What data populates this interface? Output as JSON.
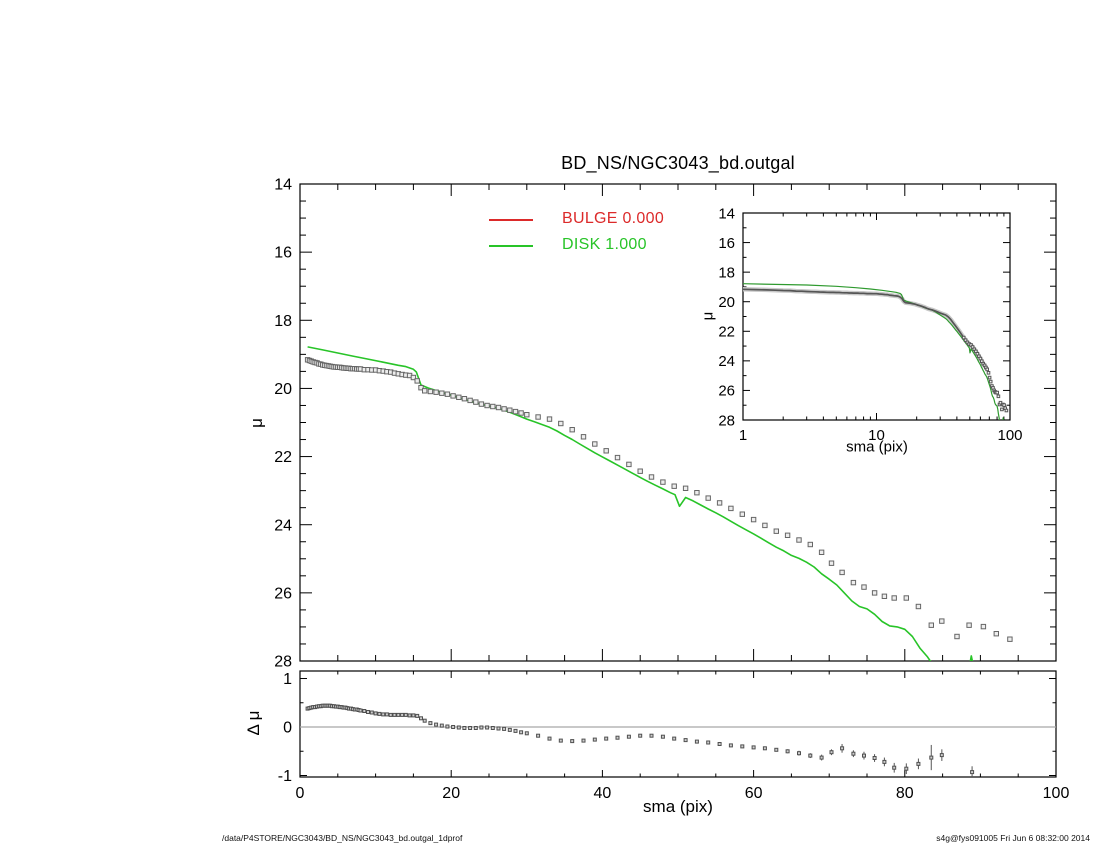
{
  "title": "BD_NS/NGC3043_bd.outgal",
  "legend": {
    "bulge_label": "BULGE  0.000",
    "disk_label": "DISK  1.000",
    "bulge_color": "#dc2a2a",
    "disk_color": "#28c428"
  },
  "footer": {
    "left": "/data/P4STORE/NGC3043/BD_NS/NGC3043_bd.outgal_1dprof",
    "right": "s4g@fys091005  Fri Jun  6 08:32:00 2014"
  },
  "colors": {
    "axis": "#000000",
    "disk": "#28c428",
    "inset_model": "#2f9a2f",
    "marker_edge": "#666666",
    "marker_fill": "#ededed",
    "inset_marker_edge": "#555555",
    "band_under": "#c9c9c9",
    "band_core": "#555555",
    "residual_marker_edge": "#4f4f4f",
    "residual_marker_fill": "#cfcfcf",
    "error_bar": "#555555",
    "zero_line": "#a8a8a8"
  },
  "chart_data": {
    "type": "line+scatter",
    "title": "BD_NS/NGC3043_bd.outgal",
    "panels": [
      {
        "id": "main",
        "ylabel": "μ",
        "xlim": [
          0,
          100
        ],
        "ylim": [
          14,
          28
        ],
        "xticks": {
          "major": [
            0,
            20,
            40,
            60,
            80,
            100
          ],
          "minor_step": 5
        },
        "yticks": {
          "major": [
            14,
            16,
            18,
            20,
            22,
            24,
            26,
            28
          ],
          "labels": [
            "14",
            "16",
            "18",
            "20",
            "22",
            "24",
            "26",
            "28"
          ],
          "minor_step": 0.5
        },
        "series": [
          {
            "name": "profile-data",
            "kind": "scatter",
            "marker": "square",
            "x": [
              1,
              1.25,
              1.5,
              1.75,
              2,
              2.25,
              2.5,
              2.75,
              3,
              3.25,
              3.5,
              3.75,
              4,
              4.25,
              4.5,
              4.75,
              5,
              5.25,
              5.5,
              5.75,
              6,
              6.25,
              6.5,
              6.75,
              7,
              7.25,
              7.5,
              7.75,
              8,
              8.5,
              9,
              9.5,
              10,
              10.5,
              11,
              11.5,
              12,
              12.5,
              13,
              13.5,
              14,
              14.5,
              15,
              15.5,
              16,
              16.5,
              17.25,
              18,
              18.75,
              19.5,
              20.25,
              21,
              21.75,
              22.5,
              23.25,
              24,
              24.75,
              25.5,
              26.25,
              27,
              27.75,
              28.5,
              29.25,
              30,
              31.5,
              33,
              34.5,
              36,
              37.5,
              39,
              40.5,
              42,
              43.5,
              45,
              46.5,
              48,
              49.5,
              51,
              52.5,
              54,
              55.5,
              57,
              58.5,
              60,
              61.5,
              63,
              64.5,
              66,
              67.5,
              69,
              70.3,
              71.7,
              73.2,
              74.6,
              76,
              77.3,
              78.6,
              80.2,
              81.8,
              83.5,
              84.9,
              86.9,
              88.5,
              90.4,
              92.1,
              93.9
            ],
            "y": [
              19.16,
              19.18,
              19.2,
              19.22,
              19.24,
              19.25,
              19.28,
              19.29,
              19.31,
              19.32,
              19.33,
              19.34,
              19.35,
              19.36,
              19.37,
              19.37,
              19.38,
              19.38,
              19.39,
              19.4,
              19.4,
              19.41,
              19.41,
              19.42,
              19.42,
              19.42,
              19.43,
              19.43,
              19.43,
              19.45,
              19.45,
              19.46,
              19.46,
              19.48,
              19.49,
              19.51,
              19.52,
              19.55,
              19.57,
              19.59,
              19.61,
              19.62,
              19.68,
              19.78,
              19.98,
              20.07,
              20.09,
              20.11,
              20.14,
              20.17,
              20.22,
              20.26,
              20.3,
              20.35,
              20.4,
              20.46,
              20.5,
              20.53,
              20.56,
              20.6,
              20.64,
              20.68,
              20.72,
              20.77,
              20.84,
              20.9,
              21.03,
              21.21,
              21.42,
              21.63,
              21.83,
              22.03,
              22.23,
              22.43,
              22.6,
              22.75,
              22.87,
              22.93,
              23.06,
              23.22,
              23.36,
              23.52,
              23.69,
              23.85,
              24.02,
              24.19,
              24.31,
              24.45,
              24.58,
              24.81,
              25.13,
              25.4,
              25.7,
              25.83,
              26.0,
              26.1,
              26.15,
              26.15,
              26.4,
              26.95,
              26.83,
              27.28,
              26.95,
              26.99,
              27.2,
              27.36
            ]
          },
          {
            "name": "disk-model",
            "kind": "line",
            "color_key": "disk",
            "x": [
              1,
              3,
              5,
              7,
              9,
              11,
              13,
              14,
              15,
              15.4,
              16,
              17,
              18,
              19,
              20,
              21,
              22,
              23,
              24,
              25,
              26,
              27,
              28,
              29,
              30,
              31,
              32,
              33,
              34,
              35,
              36,
              37,
              38,
              39,
              40,
              41,
              42,
              43,
              44,
              45,
              46,
              47,
              48,
              49,
              49.6,
              50.2,
              51,
              52,
              53,
              54,
              55,
              56,
              57,
              58,
              59,
              60,
              61,
              62,
              63,
              64,
              65,
              66,
              67,
              68,
              69,
              70,
              71,
              72,
              73,
              74,
              75,
              76,
              77,
              78,
              79,
              80,
              81,
              82,
              83,
              84,
              84.8
            ],
            "y": [
              18.78,
              18.87,
              18.96,
              19.05,
              19.14,
              19.23,
              19.32,
              19.36,
              19.44,
              19.52,
              19.9,
              19.99,
              20.06,
              20.13,
              20.2,
              20.27,
              20.34,
              20.41,
              20.47,
              20.52,
              20.57,
              20.64,
              20.72,
              20.81,
              20.9,
              20.98,
              21.06,
              21.14,
              21.25,
              21.38,
              21.5,
              21.63,
              21.76,
              21.89,
              22.01,
              22.13,
              22.25,
              22.37,
              22.49,
              22.61,
              22.73,
              22.84,
              22.95,
              23.06,
              23.12,
              23.46,
              23.2,
              23.3,
              23.42,
              23.54,
              23.65,
              23.77,
              23.9,
              24.03,
              24.15,
              24.27,
              24.4,
              24.53,
              24.66,
              24.77,
              24.9,
              24.99,
              25.1,
              25.24,
              25.44,
              25.6,
              25.77,
              26.0,
              26.24,
              26.4,
              26.47,
              26.63,
              26.84,
              26.97,
              27.0,
              27.07,
              27.28,
              27.62,
              27.88,
              28.2,
              28.75
            ]
          },
          {
            "name": "disk-model-spike",
            "kind": "line",
            "color_key": "disk",
            "x": [
              88.2,
              88.8,
              89.5
            ],
            "y": [
              28.6,
              27.85,
              28.6
            ]
          }
        ]
      },
      {
        "id": "inset",
        "xlabel": "sma (pix)",
        "ylabel": "μ",
        "xscale": "log",
        "xlim": [
          1,
          100
        ],
        "ylim": [
          14,
          28
        ],
        "xticks": {
          "major": [
            1,
            10,
            100
          ],
          "labels": [
            "1",
            "10",
            "100"
          ],
          "minor": [
            2,
            3,
            4,
            5,
            6,
            7,
            8,
            9,
            20,
            30,
            40,
            50,
            60,
            70,
            80,
            90
          ]
        },
        "yticks": {
          "major": [
            14,
            16,
            18,
            20,
            22,
            24,
            26,
            28
          ],
          "labels": [
            "14",
            "16",
            "18",
            "20",
            "22",
            "24",
            "26",
            "28"
          ],
          "minor_step": 1
        },
        "series_ref": [
          "profile-data",
          "disk-model",
          "disk-model-spike"
        ]
      },
      {
        "id": "residual",
        "xlabel": "sma (pix)",
        "ylabel": "Δ μ",
        "xlim": [
          0,
          100
        ],
        "ylim": [
          1.155,
          -1.031
        ],
        "xticks": {
          "major": [
            0,
            20,
            40,
            60,
            80,
            100
          ],
          "labels": [
            "0",
            "20",
            "40",
            "60",
            "80",
            "100"
          ],
          "minor_step": 5
        },
        "yticks": {
          "major": [
            -1,
            0,
            1
          ],
          "labels": [
            "-1",
            "0",
            "1"
          ],
          "minor_step": 0.5
        },
        "zero_line": true,
        "series": [
          {
            "name": "delta-mu",
            "kind": "scatter",
            "marker": "square",
            "x": [
              1,
              1.25,
              1.5,
              1.75,
              2,
              2.25,
              2.5,
              2.75,
              3,
              3.25,
              3.5,
              3.75,
              4,
              4.25,
              4.5,
              4.75,
              5,
              5.25,
              5.5,
              5.75,
              6,
              6.25,
              6.5,
              6.75,
              7,
              7.25,
              7.5,
              7.75,
              8,
              8.5,
              9,
              9.5,
              10,
              10.5,
              11,
              11.5,
              12,
              12.5,
              13,
              13.5,
              14,
              14.5,
              15,
              15.5,
              16,
              16.5,
              17.25,
              18,
              18.75,
              19.5,
              20.25,
              21,
              21.75,
              22.5,
              23.25,
              24,
              24.75,
              25.5,
              26.25,
              27,
              27.75,
              28.5,
              29.25,
              30,
              31.5,
              33,
              34.5,
              36,
              37.5,
              39,
              40.5,
              42,
              43.5,
              45,
              46.5,
              48,
              49.5,
              51,
              52.5,
              54,
              55.5,
              57,
              58.5,
              60,
              61.5,
              63,
              64.5,
              66,
              67.5,
              69,
              70.3,
              71.7,
              73.2,
              74.6,
              76,
              77.3,
              78.6,
              80.2,
              81.8,
              83.5,
              84.9,
              88.9
            ],
            "y": [
              0.38,
              0.39,
              0.4,
              0.41,
              0.41,
              0.42,
              0.43,
              0.43,
              0.44,
              0.44,
              0.44,
              0.44,
              0.44,
              0.43,
              0.43,
              0.42,
              0.42,
              0.41,
              0.41,
              0.4,
              0.4,
              0.39,
              0.38,
              0.38,
              0.37,
              0.36,
              0.36,
              0.35,
              0.34,
              0.33,
              0.31,
              0.3,
              0.28,
              0.27,
              0.26,
              0.26,
              0.25,
              0.25,
              0.25,
              0.25,
              0.25,
              0.24,
              0.24,
              0.23,
              0.18,
              0.13,
              0.08,
              0.05,
              0.03,
              0.01,
              0.0,
              -0.01,
              -0.02,
              -0.02,
              -0.02,
              -0.01,
              -0.01,
              -0.02,
              -0.03,
              -0.04,
              -0.06,
              -0.08,
              -0.11,
              -0.13,
              -0.18,
              -0.24,
              -0.28,
              -0.29,
              -0.28,
              -0.26,
              -0.24,
              -0.22,
              -0.2,
              -0.18,
              -0.18,
              -0.2,
              -0.24,
              -0.27,
              -0.3,
              -0.32,
              -0.35,
              -0.38,
              -0.4,
              -0.42,
              -0.44,
              -0.47,
              -0.5,
              -0.54,
              -0.59,
              -0.63,
              -0.52,
              -0.44,
              -0.55,
              -0.59,
              -0.64,
              -0.72,
              -0.84,
              -0.86,
              -0.76,
              -0.63,
              -0.58,
              -0.93
            ],
            "yerr": [
              0,
              0,
              0,
              0,
              0,
              0,
              0,
              0,
              0,
              0,
              0,
              0,
              0,
              0,
              0,
              0,
              0,
              0,
              0,
              0,
              0,
              0,
              0,
              0,
              0,
              0,
              0,
              0,
              0,
              0,
              0,
              0,
              0,
              0,
              0,
              0,
              0,
              0,
              0,
              0,
              0,
              0,
              0,
              0,
              0,
              0,
              0,
              0,
              0,
              0,
              0,
              0,
              0,
              0,
              0,
              0,
              0,
              0,
              0,
              0,
              0,
              0,
              0,
              0,
              0,
              0,
              0,
              0,
              0,
              0,
              0,
              0,
              0,
              0,
              0,
              0,
              0,
              0,
              0,
              0,
              0,
              0,
              0,
              0,
              0,
              0,
              0.04,
              0.05,
              0.05,
              0.06,
              0.06,
              0.09,
              0.07,
              0.08,
              0.08,
              0.09,
              0.1,
              0.11,
              0.11,
              0.26,
              0.12,
              0.12
            ]
          }
        ]
      }
    ]
  }
}
